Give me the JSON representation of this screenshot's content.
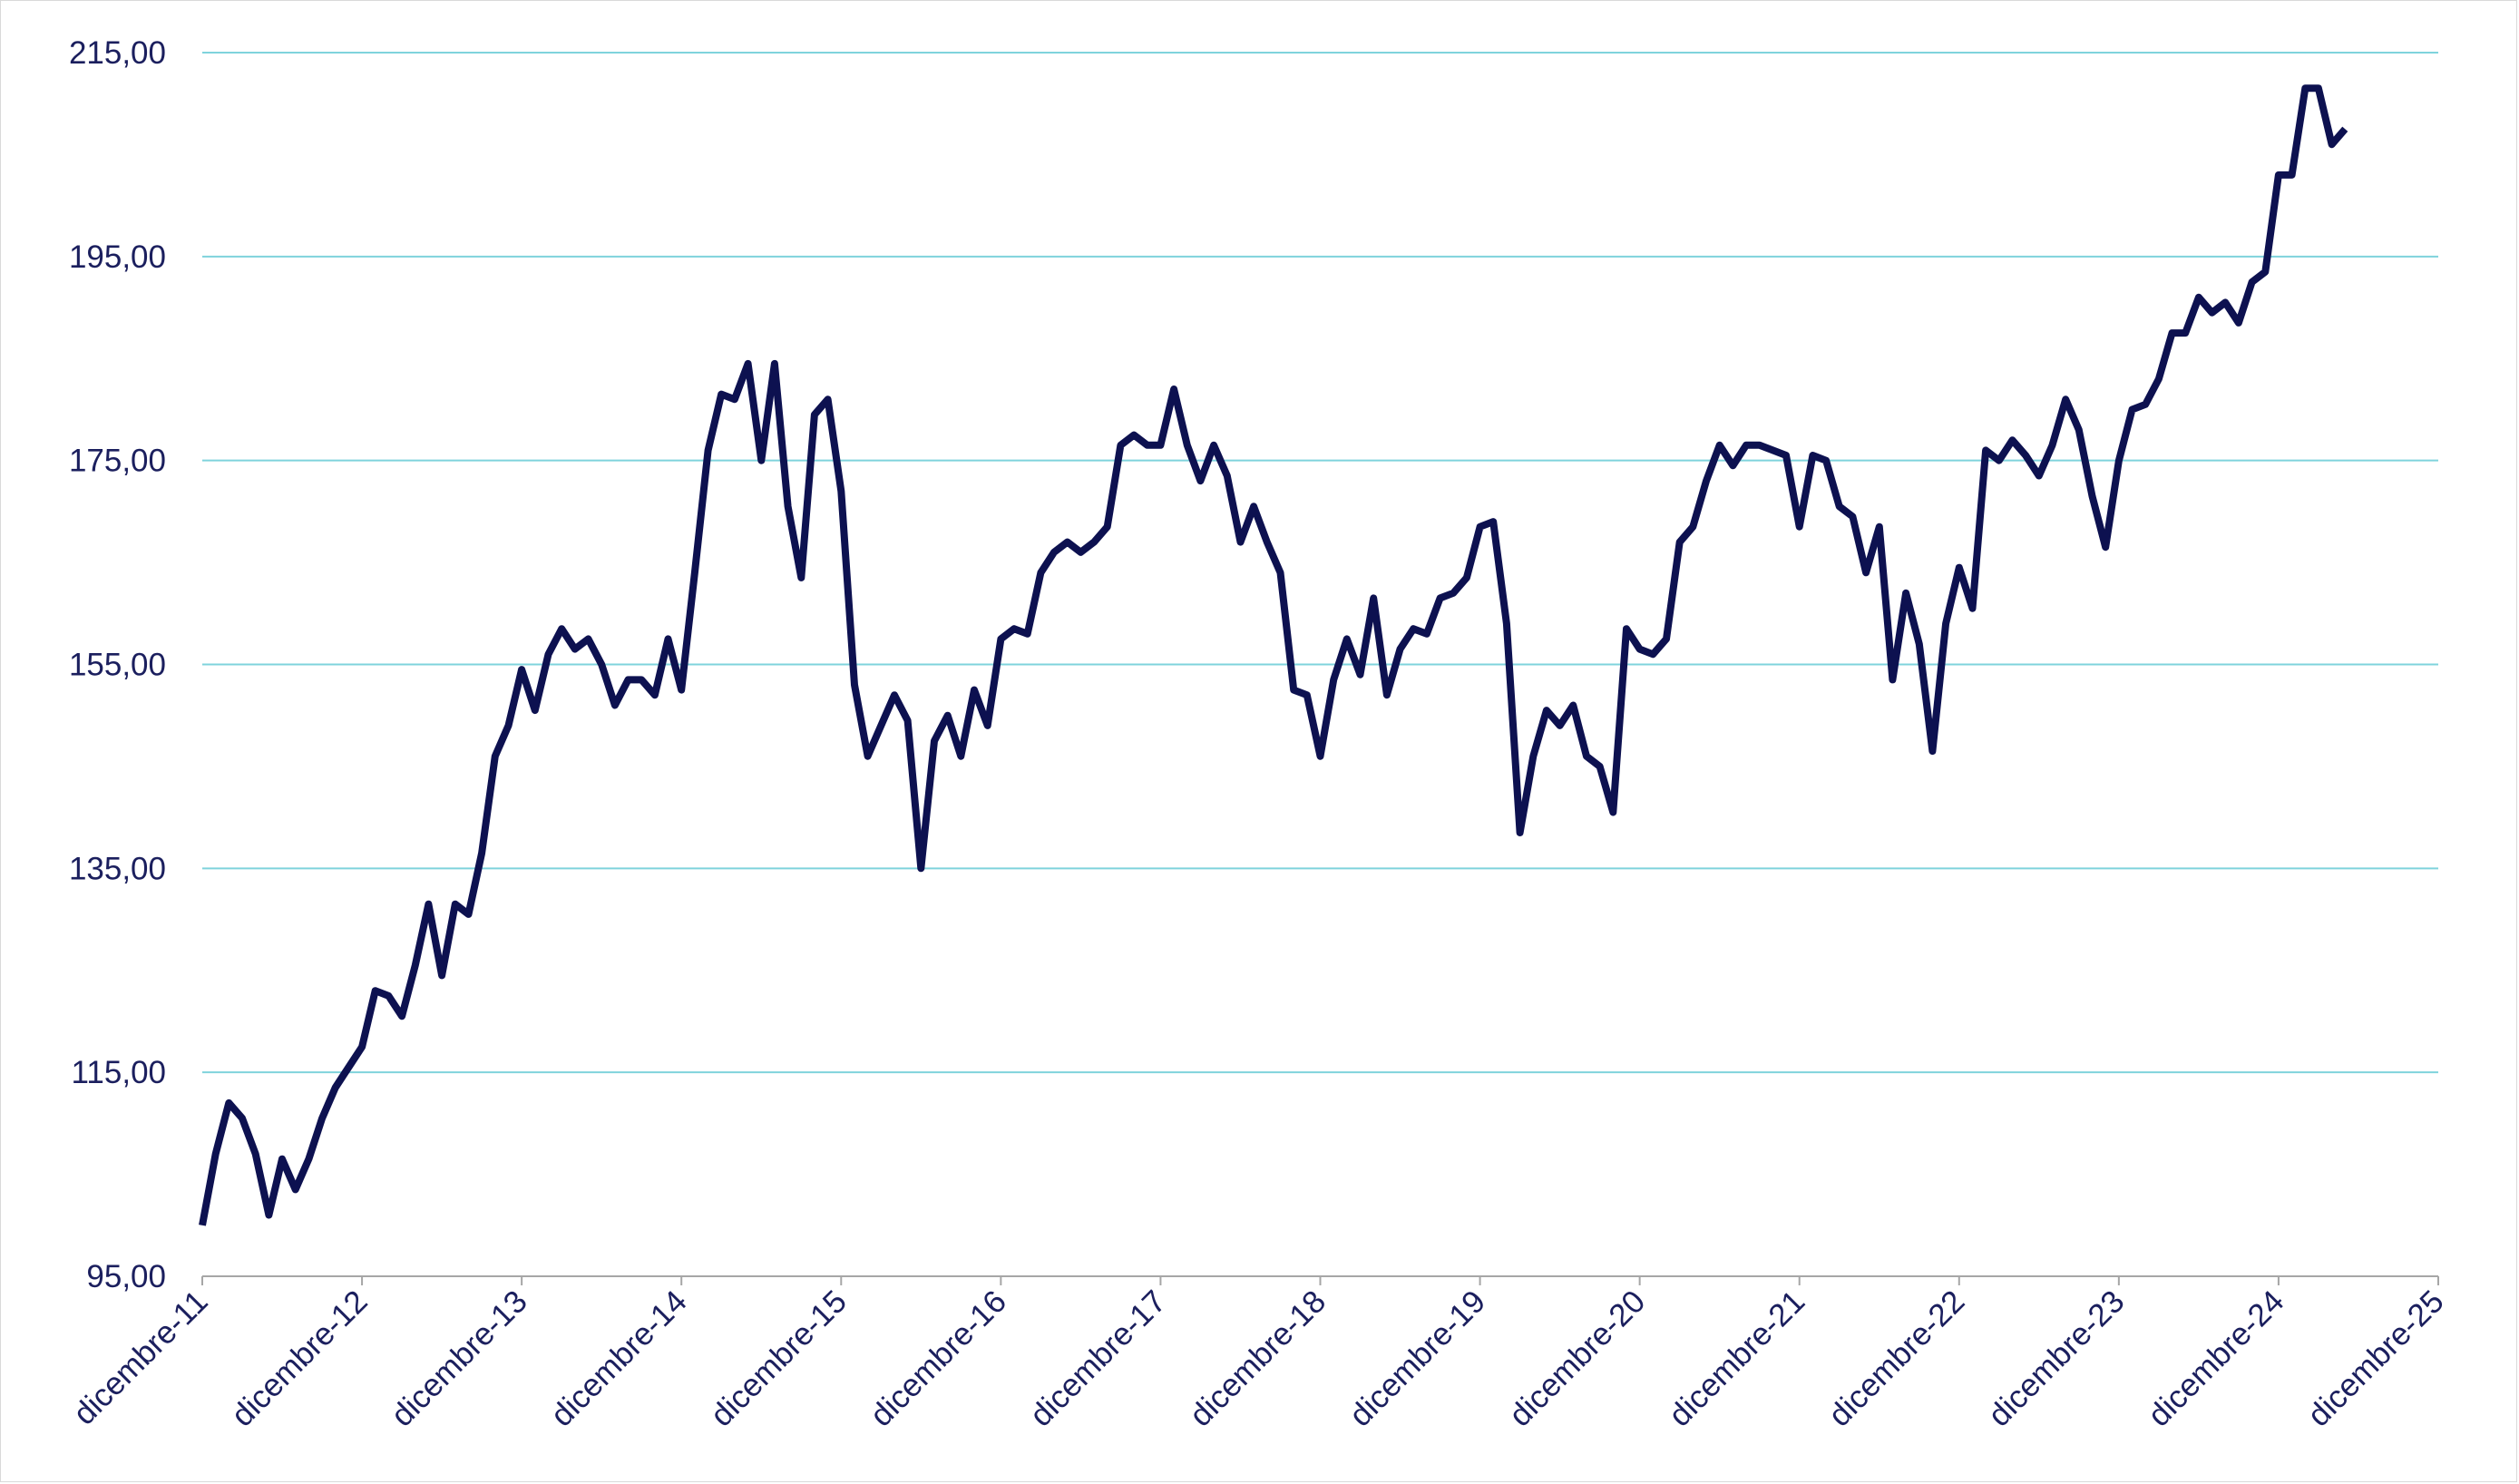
{
  "chart_data": {
    "type": "line",
    "title": "",
    "xlabel": "",
    "ylabel": "",
    "ylim": [
      95,
      215
    ],
    "yticks": [
      95,
      115,
      135,
      155,
      175,
      195,
      215
    ],
    "ytick_labels": [
      "95,00",
      "115,00",
      "135,00",
      "155,00",
      "175,00",
      "195,00",
      "215,00"
    ],
    "xtick_labels": [
      "dicembre-11",
      "dicembre-12",
      "dicembre-13",
      "dicembre-14",
      "dicembre-15",
      "dicembre-16",
      "dicembre-17",
      "dicembre-18",
      "dicembre-19",
      "dicembre-20",
      "dicembre-21",
      "dicembre-22",
      "dicembre-23",
      "dicembre-24",
      "dicembre-25"
    ],
    "grid": true,
    "legend": "none",
    "colors": {
      "line": "#0d1150",
      "grid": "#7fd3dc",
      "axis": "#a6a6a6",
      "text": "#1b1f5e"
    },
    "series": [
      {
        "values": [
          100,
          107,
          112,
          110.5,
          107,
          101,
          106.5,
          103.5,
          106.5,
          110.5,
          113.5,
          115.5,
          117.5,
          123,
          122.5,
          120.5,
          125.5,
          131.5,
          124.5,
          131.5,
          130.5,
          136.5,
          146,
          149,
          154.5,
          150.5,
          156,
          158.5,
          156.5,
          157.5,
          155,
          151,
          153.5,
          153.5,
          152,
          157.5,
          152.5,
          164,
          176,
          181.5,
          181,
          184.5,
          175,
          184.5,
          170.5,
          163.5,
          179.5,
          181,
          172,
          153,
          146,
          149,
          152,
          149.5,
          135,
          147.5,
          150,
          146,
          152.5,
          149,
          157.5,
          158.5,
          158,
          164,
          166,
          167,
          166,
          167,
          168.5,
          176.5,
          177.5,
          176.5,
          176.5,
          182,
          176.5,
          173,
          176.5,
          173.5,
          167,
          170.5,
          167,
          164,
          152.5,
          152,
          146,
          153.5,
          157.5,
          154,
          161.5,
          152,
          156.5,
          158.5,
          158,
          161.5,
          162,
          163.5,
          168.5,
          169,
          159,
          138.5,
          146,
          150.5,
          149,
          151,
          146,
          145,
          140.5,
          158.5,
          156.5,
          156,
          157.5,
          167,
          168.5,
          173,
          176.5,
          174.5,
          176.5,
          176.5,
          176,
          175.5,
          168.5,
          175.5,
          175,
          170.5,
          169.5,
          164,
          168.5,
          153.5,
          162,
          157,
          146.5,
          159,
          164.5,
          160.5,
          176,
          175,
          177,
          175.5,
          173.5,
          176.5,
          181,
          178,
          171.5,
          166.5,
          175,
          180,
          180.5,
          183,
          187.5,
          187.5,
          191,
          189.5,
          190.5,
          188.5,
          192.5,
          193.5,
          203,
          203,
          211.5,
          211.5,
          206,
          207.5
        ]
      }
    ]
  }
}
